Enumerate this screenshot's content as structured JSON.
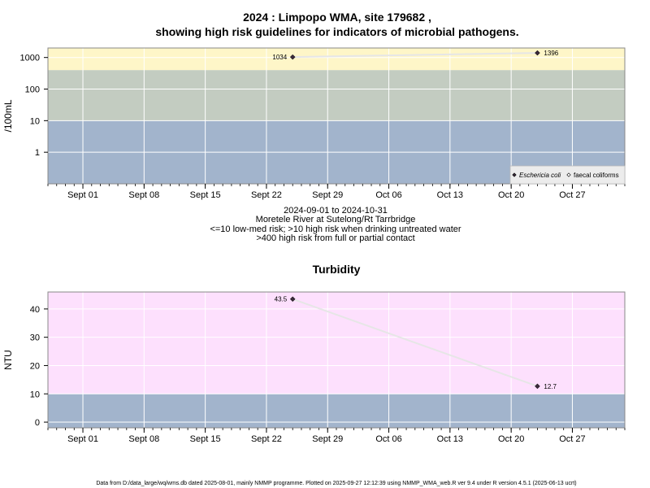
{
  "title_line1": "2024 : Limpopo WMA, site 179682 ,",
  "title_line2": "showing high risk guidelines for indicators of microbial pathogens.",
  "subtitle": [
    "2024-09-01 to 2024-10-31",
    "Moretele River at Sutelong/Rt Tarrbridge",
    "<=10 low-med risk; >10 high risk when drinking untreated water",
    ">400 high risk from full or partial contact"
  ],
  "footer": "Data from D:/data_large/wq/wms.db dated 2025-08-01, mainly NMMP programme. Plotted on 2025-09-27 12:12:39 using NMMP_WMA_web.R ver 9.4 under R version 4.5.1 (2025-06-13 ucrt)",
  "colors": {
    "band_low": "#a2b4cc",
    "band_mid": "#c3ccc1",
    "band_high": "#fef6c8",
    "turbidity_bg": "#fde0fd",
    "line": "#e6e6e6",
    "marker": "#3a2a3a"
  },
  "chart_data": [
    {
      "type": "line",
      "title": "",
      "ylabel": "/100mL",
      "yscale": "log",
      "ylim": [
        0.1,
        2000
      ],
      "xlim": [
        "2024-08-28",
        "2024-11-02"
      ],
      "x_ticks": [
        "2024-09-01",
        "2024-09-08",
        "2024-09-15",
        "2024-09-22",
        "2024-09-29",
        "2024-10-06",
        "2024-10-13",
        "2024-10-20",
        "2024-10-27"
      ],
      "x_tick_labels": [
        "Sept 01",
        "Sept 08",
        "Sept 15",
        "Sept 22",
        "Sept 29",
        "Oct 06",
        "Oct 13",
        "Oct 20",
        "Oct 27"
      ],
      "y_ticks": [
        1,
        10,
        100,
        1000
      ],
      "y_tick_labels": [
        "1",
        "10",
        "100",
        "1000"
      ],
      "bands": [
        {
          "from": 0.1,
          "to": 10,
          "color": "#a2b4cc"
        },
        {
          "from": 10,
          "to": 400,
          "color": "#c3ccc1"
        },
        {
          "from": 400,
          "to": 2000,
          "color": "#fef6c8"
        }
      ],
      "series": [
        {
          "name": "Eschericia coli",
          "marker": "filled-diamond",
          "x": [
            "2024-09-25",
            "2024-10-23"
          ],
          "y": [
            1034,
            1396
          ],
          "labels": [
            "1034",
            "1396"
          ]
        },
        {
          "name": "faecal coliforms",
          "marker": "open-diamond",
          "x": [],
          "y": [],
          "labels": []
        }
      ],
      "legend": "bottom-right",
      "grid": true
    },
    {
      "type": "line",
      "title": "Turbidity",
      "ylabel": "NTU",
      "yscale": "linear",
      "ylim": [
        -2,
        46
      ],
      "xlim": [
        "2024-08-28",
        "2024-11-02"
      ],
      "x_ticks": [
        "2024-09-01",
        "2024-09-08",
        "2024-09-15",
        "2024-09-22",
        "2024-09-29",
        "2024-10-06",
        "2024-10-13",
        "2024-10-20",
        "2024-10-27"
      ],
      "x_tick_labels": [
        "Sept 01",
        "Sept 08",
        "Sept 15",
        "Sept 22",
        "Sept 29",
        "Oct 06",
        "Oct 13",
        "Oct 20",
        "Oct 27"
      ],
      "y_ticks": [
        0,
        10,
        20,
        30,
        40
      ],
      "y_tick_labels": [
        "0",
        "10",
        "20",
        "30",
        "40"
      ],
      "bands": [
        {
          "from": -2,
          "to": 10,
          "color": "#a2b4cc"
        },
        {
          "from": 10,
          "to": 46,
          "color": "#fde0fd"
        }
      ],
      "series": [
        {
          "name": "",
          "marker": "filled-diamond",
          "x": [
            "2024-09-25",
            "2024-10-23"
          ],
          "y": [
            43.5,
            12.7
          ],
          "labels": [
            "43.5",
            "12.7"
          ]
        }
      ],
      "legend": "none",
      "grid": true
    }
  ]
}
